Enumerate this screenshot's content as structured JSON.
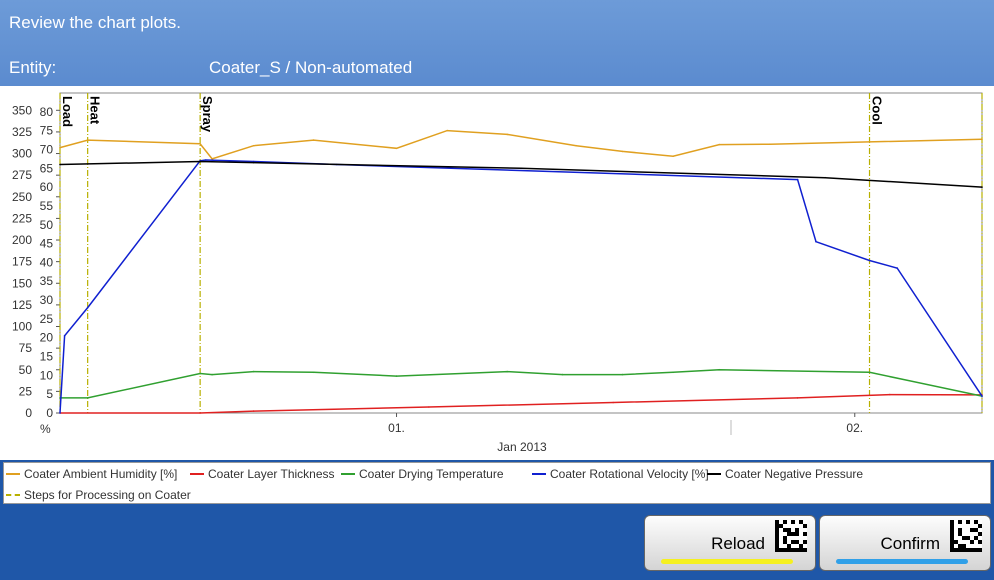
{
  "header": {
    "instruction": "Review the chart plots.",
    "entity_label": "Entity:",
    "entity_value": "Coater_S / Non-automated"
  },
  "chart_data": {
    "type": "line",
    "left_axis_label": "%",
    "left_ticks": [
      350,
      325,
      300,
      275,
      250,
      225,
      200,
      175,
      150,
      125,
      100,
      75,
      50,
      25,
      0
    ],
    "right_ticks": [
      80,
      75,
      70,
      65,
      60,
      55,
      50,
      45,
      40,
      35,
      30,
      25,
      20,
      15,
      10,
      5,
      0
    ],
    "x_ticks": [
      "01.",
      "02."
    ],
    "x_label": "Jan 2013",
    "steps": [
      {
        "label": "Load",
        "x": 0.0
      },
      {
        "label": "Heat",
        "x": 0.03
      },
      {
        "label": "Spray",
        "x": 0.152
      },
      {
        "label": "Cool",
        "x": 0.878
      },
      {
        "label": "",
        "x": 1.0
      }
    ],
    "series": [
      {
        "name": "Coater Ambient Humidity [%]",
        "color": "#e0a020",
        "x": [
          0,
          0.03,
          0.152,
          0.165,
          0.21,
          0.275,
          0.365,
          0.42,
          0.485,
          0.56,
          0.61,
          0.665,
          0.715,
          0.77,
          1.0
        ],
        "y": [
          70.5,
          72.5,
          71.5,
          67.5,
          71,
          72.5,
          70.3,
          75,
          74,
          71,
          69.5,
          68.2,
          71.3,
          71.4,
          72.7
        ]
      },
      {
        "name": "Coater Layer Thickness",
        "color": "#e02020",
        "x": [
          0,
          0.152,
          0.21,
          0.4,
          0.6,
          0.8,
          0.9,
          1.0
        ],
        "y": [
          0,
          0,
          0.5,
          1.6,
          2.8,
          4.0,
          4.9,
          4.8
        ]
      },
      {
        "name": "Coater Drying Temperature",
        "color": "#30a030",
        "x": [
          0,
          0.03,
          0.152,
          0.165,
          0.21,
          0.275,
          0.365,
          0.485,
          0.545,
          0.61,
          0.665,
          0.715,
          0.878,
          1.0
        ],
        "y": [
          4,
          4,
          10.5,
          10.2,
          11,
          10.8,
          9.8,
          11,
          10.2,
          10.2,
          10.8,
          11.5,
          10.8,
          4.5
        ]
      },
      {
        "name": "Coater Rotational Velocity [%]",
        "color": "#1020d0",
        "x": [
          0,
          0.005,
          0.03,
          0.152,
          0.158,
          0.21,
          0.3,
          0.8,
          0.82,
          0.878,
          0.908,
          1.0
        ],
        "y": [
          0,
          20.5,
          28,
          67,
          67.2,
          66.8,
          66,
          62,
          45.5,
          40.5,
          38.5,
          4.5
        ]
      },
      {
        "name": "Coater Negative Pressure",
        "color": "#000000",
        "x": [
          0,
          0.152,
          0.21,
          0.5,
          0.83,
          1.0
        ],
        "y": [
          66,
          66.8,
          66.5,
          65,
          62.5,
          60
        ]
      }
    ],
    "grid": false,
    "legend_position": "bottom"
  },
  "legend": {
    "items": [
      {
        "label": "Coater Ambient Humidity [%]",
        "color": "#e0a020",
        "style": "solid"
      },
      {
        "label": "Coater Layer Thickness",
        "color": "#e02020",
        "style": "solid"
      },
      {
        "label": "Coater Drying Temperature",
        "color": "#30a030",
        "style": "solid"
      },
      {
        "label": "Coater Rotational Velocity [%]",
        "color": "#1020d0",
        "style": "solid"
      },
      {
        "label": "Coater Negative Pressure",
        "color": "#000000",
        "style": "solid"
      },
      {
        "label": "Steps for Processing on Coater",
        "color": "#b8b000",
        "style": "dashdot"
      }
    ]
  },
  "buttons": {
    "reload": {
      "label": "Reload",
      "bar_color": "#f5f020"
    },
    "confirm": {
      "label": "Confirm",
      "bar_color": "#30a0e8"
    }
  }
}
